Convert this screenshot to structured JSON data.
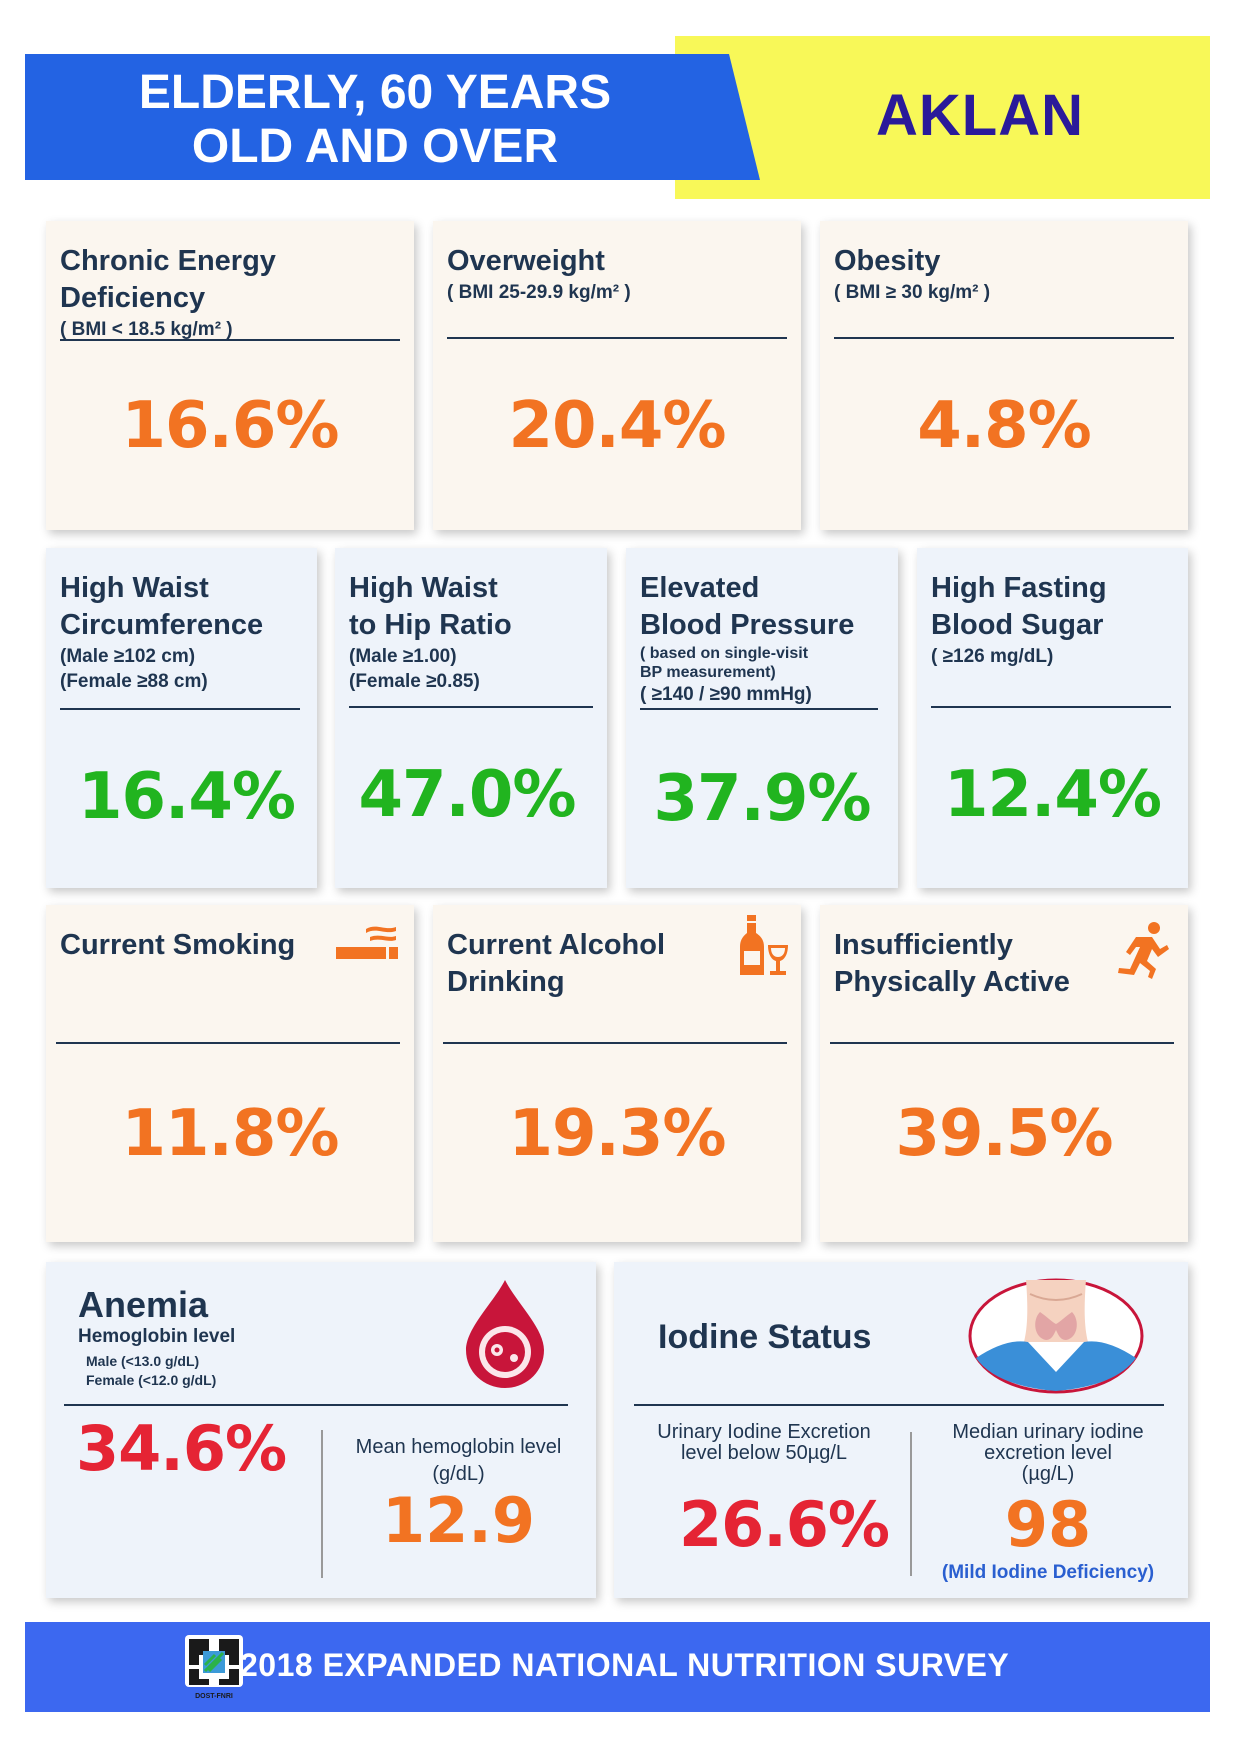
{
  "header": {
    "title_line1": "ELDERLY, 60 YEARS",
    "title_line2": "OLD AND OVER",
    "region": "AKLAN"
  },
  "row1": [
    {
      "title_l1": "Chronic Energy",
      "title_l2": "Deficiency",
      "sub": "( BMI < 18.5 kg/m² )",
      "value": "16.6%"
    },
    {
      "title_l1": "Overweight",
      "sub": "( BMI 25-29.9 kg/m² )",
      "value": "20.4%"
    },
    {
      "title_l1": "Obesity",
      "sub": "( BMI ≥ 30 kg/m² )",
      "value": "4.8%"
    }
  ],
  "row2": [
    {
      "title_l1": "High Waist",
      "title_l2": "Circumference",
      "sub1": "(Male  ≥102 cm)",
      "sub2": "(Female  ≥88 cm)",
      "value": "16.4%"
    },
    {
      "title_l1": "High Waist",
      "title_l2": "to Hip Ratio",
      "sub1": "(Male  ≥1.00)",
      "sub2": "(Female  ≥0.85)",
      "value": "47.0%"
    },
    {
      "title_l1": "Elevated",
      "title_l2": "Blood Pressure",
      "sub1": "( based on single-visit",
      "sub2": "BP measurement)",
      "sub3": "( ≥140 / ≥90 mmHg)",
      "value": "37.9%"
    },
    {
      "title_l1": "High Fasting",
      "title_l2": "Blood Sugar",
      "sub1": "( ≥126 mg/dL)",
      "value": "12.4%"
    }
  ],
  "row3": [
    {
      "title_l1": "Current Smoking",
      "value": "11.8%",
      "icon": "cigarette-icon"
    },
    {
      "title_l1": "Current Alcohol",
      "title_l2": "Drinking",
      "value": "19.3%",
      "icon": "alcohol-icon"
    },
    {
      "title_l1": "Insufficiently",
      "title_l2": "Physically Active",
      "value": "39.5%",
      "icon": "running-person-icon"
    }
  ],
  "anemia": {
    "title": "Anemia",
    "sub": "Hemoglobin level",
    "male": "Male  (<13.0 g/dL)",
    "female": "Female  (<12.0 g/dL)",
    "value": "34.6%",
    "mean_label_l1": "Mean hemoglobin level",
    "mean_label_l2": "(g/dL)",
    "mean_value": "12.9",
    "icon": "blood-drop-icon"
  },
  "iodine": {
    "title": "Iodine Status",
    "uie_label_l1": "Urinary Iodine Excretion",
    "uie_label_l2": "level below 50µg/L",
    "uie_value": "26.6%",
    "median_label_l1": "Median urinary iodine",
    "median_label_l2": "excretion level",
    "median_label_l3": "(µg/L)",
    "median_value": "98",
    "median_note": "(Mild Iodine Deficiency)",
    "icon": "thyroid-icon"
  },
  "footer": {
    "text": "2018 EXPANDED NATIONAL NUTRITION SURVEY",
    "logo_text": "DOST-FNRI"
  },
  "colors": {
    "orange": "#f27322",
    "green": "#21b41f",
    "red": "#e52434",
    "header_blue": "#2363e3",
    "header_yellow": "#f8f858",
    "footer_blue": "#3c68f0"
  }
}
